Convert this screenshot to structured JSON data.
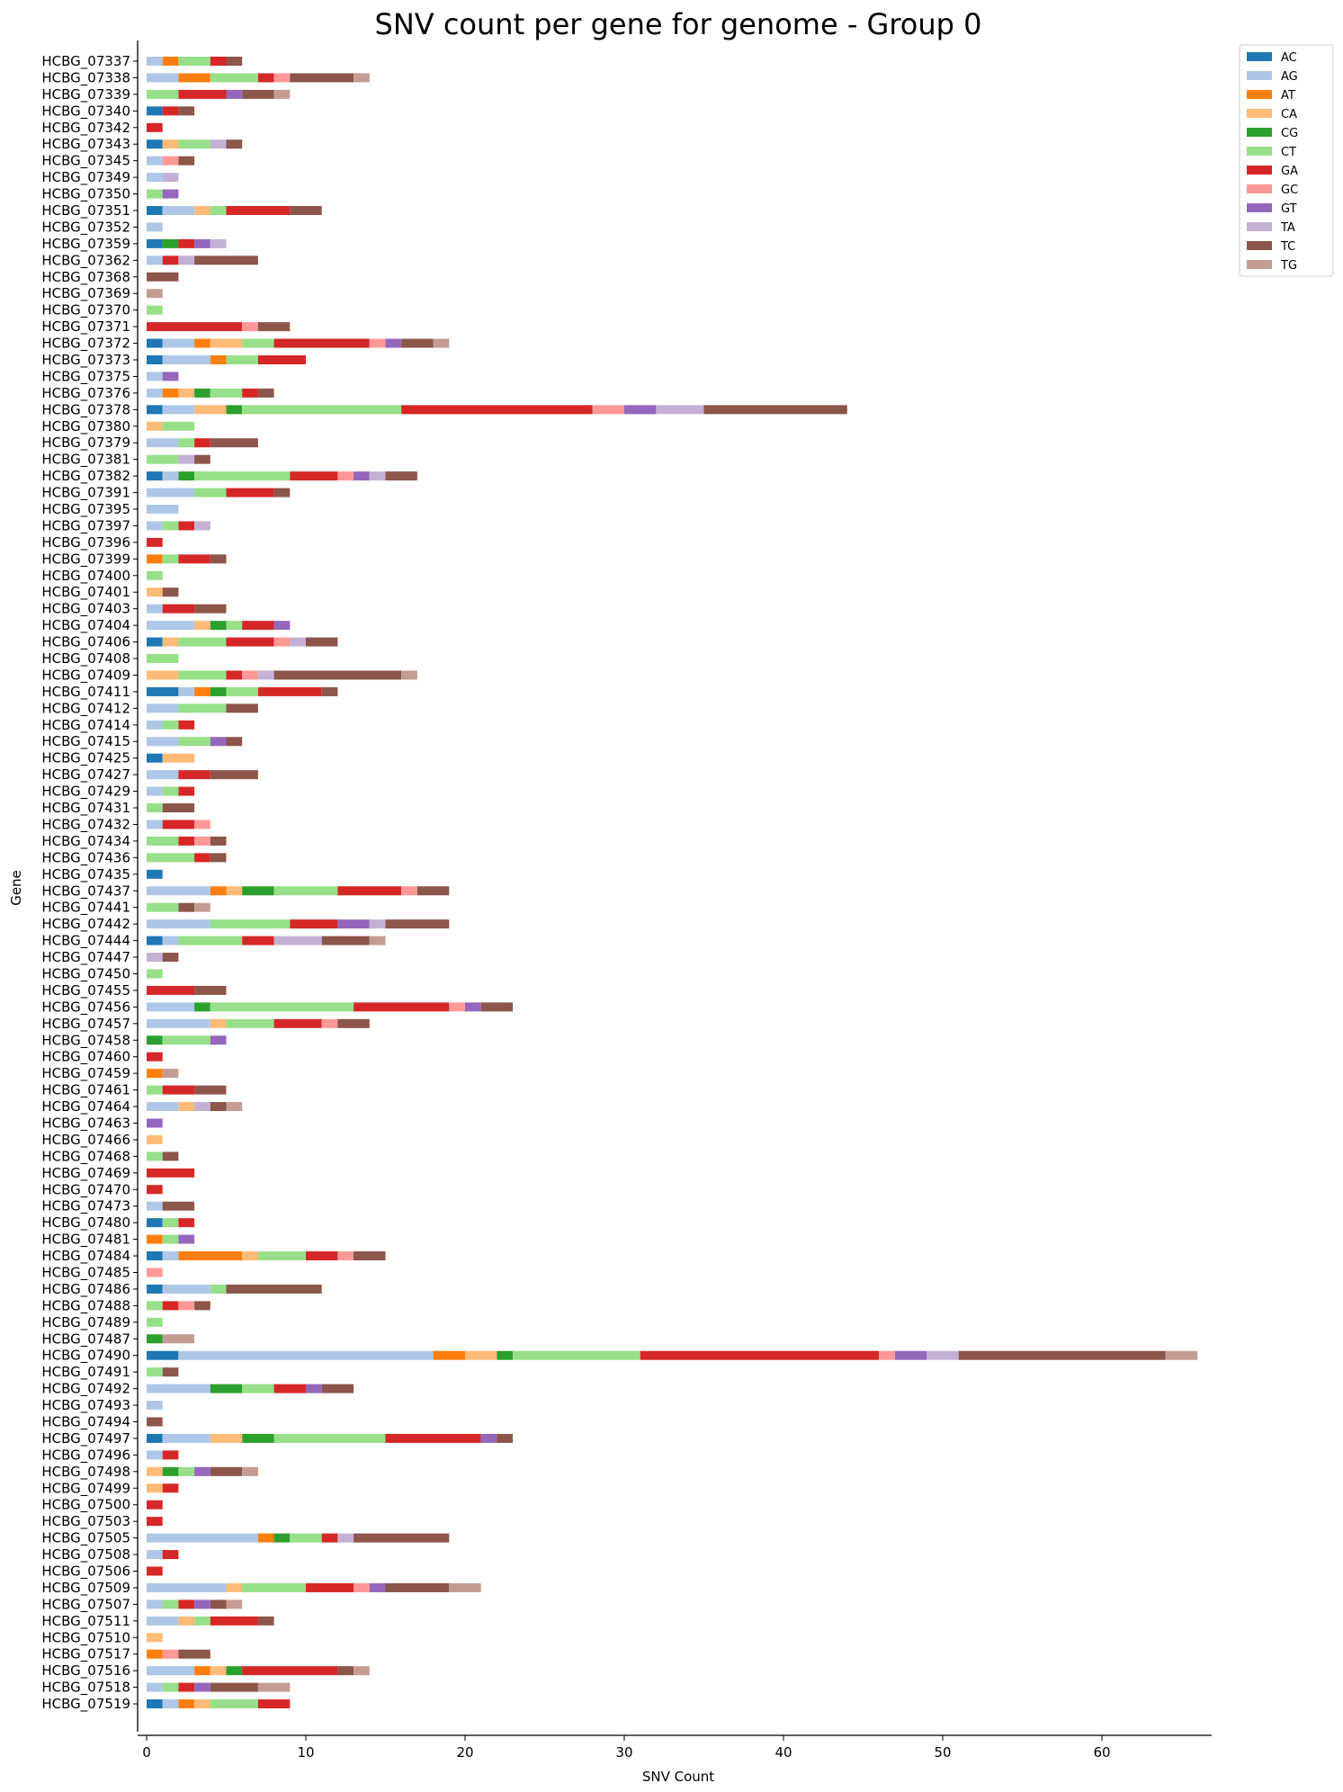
{
  "chart_data": {
    "type": "bar",
    "orientation": "horizontal",
    "stacked": true,
    "title": "SNV count per gene for genome - Group 0",
    "xlabel": "SNV Count",
    "ylabel": "Gene",
    "xlim": [
      0,
      67
    ],
    "xticks": [
      0,
      10,
      20,
      30,
      40,
      50,
      60
    ],
    "legend_placement": "top-right outside",
    "grid": false,
    "series_names": [
      "AC",
      "AG",
      "AT",
      "CA",
      "CG",
      "CT",
      "GA",
      "GC",
      "GT",
      "TA",
      "TC",
      "TG"
    ],
    "colors": {
      "AC": "#1f77b4",
      "AG": "#aec7e8",
      "AT": "#ff7f0e",
      "CA": "#ffbb78",
      "CG": "#2ca02c",
      "CT": "#98df8a",
      "GA": "#d62728",
      "GC": "#ff9896",
      "GT": "#9467bd",
      "TA": "#c5b0d5",
      "TC": "#8c564b",
      "TG": "#c49c94"
    },
    "categories": [
      "HCBG_07337",
      "HCBG_07338",
      "HCBG_07339",
      "HCBG_07340",
      "HCBG_07342",
      "HCBG_07343",
      "HCBG_07345",
      "HCBG_07349",
      "HCBG_07350",
      "HCBG_07351",
      "HCBG_07352",
      "HCBG_07359",
      "HCBG_07362",
      "HCBG_07368",
      "HCBG_07369",
      "HCBG_07370",
      "HCBG_07371",
      "HCBG_07372",
      "HCBG_07373",
      "HCBG_07375",
      "HCBG_07376",
      "HCBG_07378",
      "HCBG_07380",
      "HCBG_07379",
      "HCBG_07381",
      "HCBG_07382",
      "HCBG_07391",
      "HCBG_07395",
      "HCBG_07397",
      "HCBG_07396",
      "HCBG_07399",
      "HCBG_07400",
      "HCBG_07401",
      "HCBG_07403",
      "HCBG_07404",
      "HCBG_07406",
      "HCBG_07408",
      "HCBG_07409",
      "HCBG_07411",
      "HCBG_07412",
      "HCBG_07414",
      "HCBG_07415",
      "HCBG_07425",
      "HCBG_07427",
      "HCBG_07429",
      "HCBG_07431",
      "HCBG_07432",
      "HCBG_07434",
      "HCBG_07436",
      "HCBG_07435",
      "HCBG_07437",
      "HCBG_07441",
      "HCBG_07442",
      "HCBG_07444",
      "HCBG_07447",
      "HCBG_07450",
      "HCBG_07455",
      "HCBG_07456",
      "HCBG_07457",
      "HCBG_07458",
      "HCBG_07460",
      "HCBG_07459",
      "HCBG_07461",
      "HCBG_07464",
      "HCBG_07463",
      "HCBG_07466",
      "HCBG_07468",
      "HCBG_07469",
      "HCBG_07470",
      "HCBG_07473",
      "HCBG_07480",
      "HCBG_07481",
      "HCBG_07484",
      "HCBG_07485",
      "HCBG_07486",
      "HCBG_07488",
      "HCBG_07489",
      "HCBG_07487",
      "HCBG_07490",
      "HCBG_07491",
      "HCBG_07492",
      "HCBG_07493",
      "HCBG_07494",
      "HCBG_07497",
      "HCBG_07496",
      "HCBG_07498",
      "HCBG_07499",
      "HCBG_07500",
      "HCBG_07503",
      "HCBG_07505",
      "HCBG_07508",
      "HCBG_07506",
      "HCBG_07509",
      "HCBG_07507",
      "HCBG_07511",
      "HCBG_07510",
      "HCBG_07517",
      "HCBG_07516",
      "HCBG_07518",
      "HCBG_07519"
    ],
    "rows": [
      {
        "AG": 1,
        "AT": 1,
        "CT": 2,
        "GA": 1,
        "TC": 1
      },
      {
        "AG": 2,
        "AT": 2,
        "CT": 3,
        "GA": 1,
        "GC": 1,
        "TC": 4,
        "TG": 1
      },
      {
        "CT": 2,
        "GA": 3,
        "GT": 1,
        "TC": 2,
        "TG": 1
      },
      {
        "AC": 1,
        "GA": 1,
        "TC": 1
      },
      {
        "GA": 1
      },
      {
        "AC": 1,
        "CA": 1,
        "CT": 2,
        "TA": 1,
        "TC": 1
      },
      {
        "AG": 1,
        "GC": 1,
        "TC": 1
      },
      {
        "AG": 1,
        "TA": 1
      },
      {
        "CT": 1,
        "GT": 1
      },
      {
        "AC": 1,
        "AG": 2,
        "CA": 1,
        "CT": 1,
        "GA": 4,
        "TC": 2
      },
      {
        "AG": 1
      },
      {
        "AC": 1,
        "CG": 1,
        "GA": 1,
        "GT": 1,
        "TA": 1
      },
      {
        "AG": 1,
        "GA": 1,
        "TA": 1,
        "TC": 4
      },
      {
        "TC": 2
      },
      {
        "TG": 1
      },
      {
        "CT": 1
      },
      {
        "GA": 6,
        "GC": 1,
        "TC": 2
      },
      {
        "AC": 1,
        "AG": 2,
        "AT": 1,
        "CA": 2,
        "CT": 2,
        "GA": 6,
        "GC": 1,
        "GT": 1,
        "TC": 2,
        "TG": 1
      },
      {
        "AC": 1,
        "AG": 3,
        "AT": 1,
        "CT": 2,
        "GA": 3
      },
      {
        "AG": 1,
        "GT": 1
      },
      {
        "AG": 1,
        "AT": 1,
        "CA": 1,
        "CG": 1,
        "CT": 2,
        "GA": 1,
        "TC": 1
      },
      {
        "AC": 1,
        "AG": 2,
        "CA": 2,
        "CG": 1,
        "CT": 10,
        "GA": 12,
        "GC": 2,
        "GT": 2,
        "TA": 3,
        "TC": 9
      },
      {
        "CA": 1,
        "CT": 2
      },
      {
        "AG": 2,
        "CT": 1,
        "GA": 1,
        "TC": 3
      },
      {
        "CT": 2,
        "TA": 1,
        "TC": 1
      },
      {
        "AC": 1,
        "AG": 1,
        "CG": 1,
        "CT": 6,
        "GA": 3,
        "GC": 1,
        "GT": 1,
        "TA": 1,
        "TC": 2
      },
      {
        "AG": 3,
        "CT": 2,
        "GA": 3,
        "TC": 1
      },
      {
        "AG": 2
      },
      {
        "AG": 1,
        "CT": 1,
        "GA": 1,
        "TA": 1
      },
      {
        "GA": 1
      },
      {
        "AT": 1,
        "CT": 1,
        "GA": 2,
        "TC": 1
      },
      {
        "CT": 1
      },
      {
        "CA": 1,
        "TC": 1
      },
      {
        "AG": 1,
        "GA": 2,
        "TC": 2
      },
      {
        "AG": 3,
        "CA": 1,
        "CG": 1,
        "CT": 1,
        "GA": 2,
        "GT": 1
      },
      {
        "AC": 1,
        "CA": 1,
        "CT": 3,
        "GA": 3,
        "GC": 1,
        "TA": 1,
        "TC": 2
      },
      {
        "CT": 2
      },
      {
        "CA": 2,
        "CT": 3,
        "GA": 1,
        "GC": 1,
        "TA": 1,
        "TC": 8,
        "TG": 1
      },
      {
        "AC": 2,
        "AG": 1,
        "AT": 1,
        "CG": 1,
        "CT": 2,
        "GA": 4,
        "TC": 1
      },
      {
        "AG": 2,
        "CT": 3,
        "TC": 2
      },
      {
        "AG": 1,
        "CT": 1,
        "GA": 1
      },
      {
        "AG": 2,
        "CT": 2,
        "GT": 1,
        "TC": 1
      },
      {
        "AC": 1,
        "CA": 2
      },
      {
        "AG": 2,
        "GA": 2,
        "TC": 3
      },
      {
        "AG": 1,
        "CT": 1,
        "GA": 1
      },
      {
        "CT": 1,
        "TC": 2
      },
      {
        "AG": 1,
        "GA": 2,
        "GC": 1
      },
      {
        "CT": 2,
        "GA": 1,
        "GC": 1,
        "TC": 1
      },
      {
        "CT": 3,
        "GA": 1,
        "TC": 1
      },
      {
        "AC": 1
      },
      {
        "AG": 4,
        "AT": 1,
        "CA": 1,
        "CG": 2,
        "CT": 4,
        "GA": 4,
        "GC": 1,
        "TC": 2
      },
      {
        "CT": 2,
        "TC": 1,
        "TG": 1
      },
      {
        "AG": 4,
        "CT": 5,
        "GA": 3,
        "GT": 2,
        "TA": 1,
        "TC": 4
      },
      {
        "AC": 1,
        "AG": 1,
        "CT": 4,
        "GA": 2,
        "TA": 3,
        "TC": 3,
        "TG": 1
      },
      {
        "TA": 1,
        "TC": 1
      },
      {
        "CT": 1
      },
      {
        "GA": 3,
        "TC": 2
      },
      {
        "AG": 3,
        "CG": 1,
        "CT": 9,
        "GA": 6,
        "GC": 1,
        "GT": 1,
        "TC": 2
      },
      {
        "AG": 4,
        "CA": 1,
        "CT": 3,
        "GA": 3,
        "GC": 1,
        "TC": 2
      },
      {
        "CG": 1,
        "CT": 3,
        "GT": 1
      },
      {
        "GA": 1
      },
      {
        "AT": 1,
        "TG": 1
      },
      {
        "CT": 1,
        "GA": 2,
        "TC": 2
      },
      {
        "AG": 2,
        "CA": 1,
        "TA": 1,
        "TC": 1,
        "TG": 1
      },
      {
        "GT": 1
      },
      {
        "CA": 1
      },
      {
        "CT": 1,
        "TC": 1
      },
      {
        "GA": 3
      },
      {
        "GA": 1
      },
      {
        "AG": 1,
        "TC": 2
      },
      {
        "AC": 1,
        "CT": 1,
        "GA": 1
      },
      {
        "AT": 1,
        "CT": 1,
        "GT": 1
      },
      {
        "AC": 1,
        "AG": 1,
        "AT": 4,
        "CA": 1,
        "CT": 3,
        "GA": 2,
        "GC": 1,
        "TC": 2
      },
      {
        "GC": 1
      },
      {
        "AC": 1,
        "AG": 3,
        "CT": 1,
        "TC": 6
      },
      {
        "CT": 1,
        "GA": 1,
        "GC": 1,
        "TC": 1
      },
      {
        "CT": 1
      },
      {
        "CG": 1,
        "TG": 2
      },
      {
        "AC": 2,
        "AG": 16,
        "AT": 2,
        "CA": 2,
        "CG": 1,
        "CT": 8,
        "GA": 15,
        "GC": 1,
        "GT": 2,
        "TA": 2,
        "TC": 13,
        "TG": 2
      },
      {
        "CT": 1,
        "TC": 1
      },
      {
        "AG": 4,
        "CG": 2,
        "CT": 2,
        "GA": 2,
        "GT": 1,
        "TC": 2
      },
      {
        "AG": 1
      },
      {
        "TC": 1
      },
      {
        "AC": 1,
        "AG": 3,
        "CA": 2,
        "CG": 2,
        "CT": 7,
        "GA": 6,
        "GT": 1,
        "TC": 1
      },
      {
        "AG": 1,
        "GA": 1
      },
      {
        "CA": 1,
        "CG": 1,
        "CT": 1,
        "GT": 1,
        "TC": 2,
        "TG": 1
      },
      {
        "CA": 1,
        "GA": 1
      },
      {
        "GA": 1
      },
      {
        "GA": 1
      },
      {
        "AG": 7,
        "AT": 1,
        "CG": 1,
        "CT": 2,
        "GA": 1,
        "TA": 1,
        "TC": 6
      },
      {
        "AG": 1,
        "GA": 1
      },
      {
        "GA": 1
      },
      {
        "AG": 5,
        "CA": 1,
        "CT": 4,
        "GA": 3,
        "GC": 1,
        "GT": 1,
        "TC": 4,
        "TG": 2
      },
      {
        "AG": 1,
        "CT": 1,
        "GA": 1,
        "GT": 1,
        "TC": 1,
        "TG": 1
      },
      {
        "AG": 2,
        "CA": 1,
        "CT": 1,
        "GA": 3,
        "TC": 1
      },
      {
        "CA": 1
      },
      {
        "AT": 1,
        "GC": 1,
        "TC": 2
      },
      {
        "AG": 3,
        "AT": 1,
        "CA": 1,
        "CG": 1,
        "GA": 6,
        "TC": 1,
        "TG": 1
      },
      {
        "AG": 1,
        "CT": 1,
        "GA": 1,
        "GT": 1,
        "TC": 3,
        "TG": 2
      },
      {
        "AC": 1,
        "AG": 1,
        "AT": 1,
        "CA": 1,
        "CT": 3,
        "GA": 2
      }
    ]
  }
}
